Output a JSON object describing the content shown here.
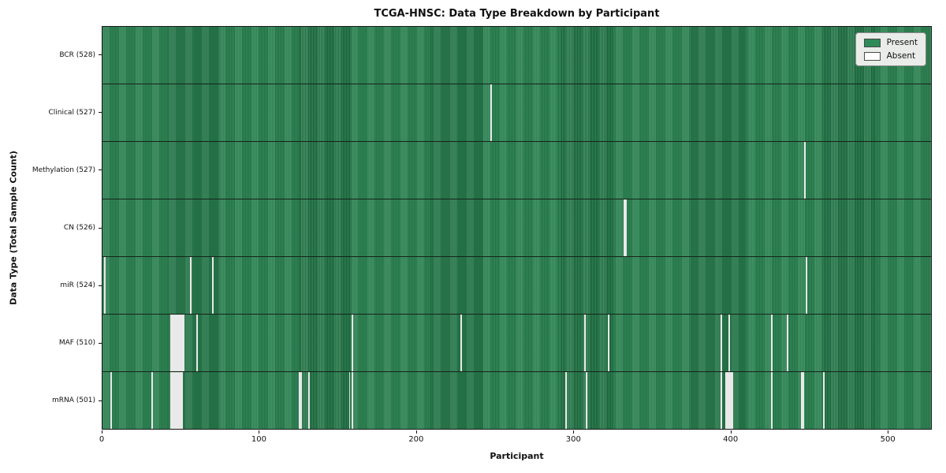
{
  "chart_data": {
    "type": "heatmap",
    "title": "TCGA-HNSC: Data Type Breakdown by Participant",
    "xlabel": "Participant",
    "ylabel": "Data Type (Total Sample Count)",
    "n_participants": 528,
    "x_ticks": [
      0,
      100,
      200,
      300,
      400,
      500
    ],
    "x_tick_labels": [
      "0",
      "100",
      "200",
      "300",
      "400",
      "500"
    ],
    "grid": false,
    "legend_position": "upper right",
    "colors": {
      "present": "#2e8b57",
      "absent": "#ffffff",
      "row_divider": "#15241a"
    },
    "legend": [
      {
        "label": "Present",
        "color": "#2e8b57"
      },
      {
        "label": "Absent",
        "color": "#ffffff"
      }
    ],
    "rows": [
      {
        "label": "BCR (528)",
        "data_type": "BCR",
        "total": 528,
        "absent_participants": []
      },
      {
        "label": "Clinical (527)",
        "data_type": "Clinical",
        "total": 527,
        "absent_participants": [
          247
        ]
      },
      {
        "label": "Methylation (527)",
        "data_type": "Methylation",
        "total": 527,
        "absent_participants": [
          447
        ]
      },
      {
        "label": "CN (526)",
        "data_type": "CN",
        "total": 526,
        "absent_participants": [
          332,
          333
        ]
      },
      {
        "label": "miR (524)",
        "data_type": "miR",
        "total": 524,
        "absent_participants": [
          1,
          56,
          70,
          448
        ]
      },
      {
        "label": "MAF (510)",
        "data_type": "MAF",
        "total": 510,
        "absent_participants": [
          43,
          44,
          45,
          46,
          47,
          48,
          49,
          50,
          51,
          60,
          159,
          228,
          307,
          322,
          394,
          399,
          426,
          436
        ]
      },
      {
        "label": "mRNA (501)",
        "data_type": "mRNA",
        "total": 501,
        "absent_participants": [
          5,
          31,
          43,
          44,
          45,
          46,
          47,
          48,
          49,
          50,
          125,
          126,
          131,
          157,
          159,
          295,
          308,
          394,
          397,
          398,
          399,
          400,
          401,
          426,
          445,
          446,
          459
        ]
      }
    ]
  }
}
